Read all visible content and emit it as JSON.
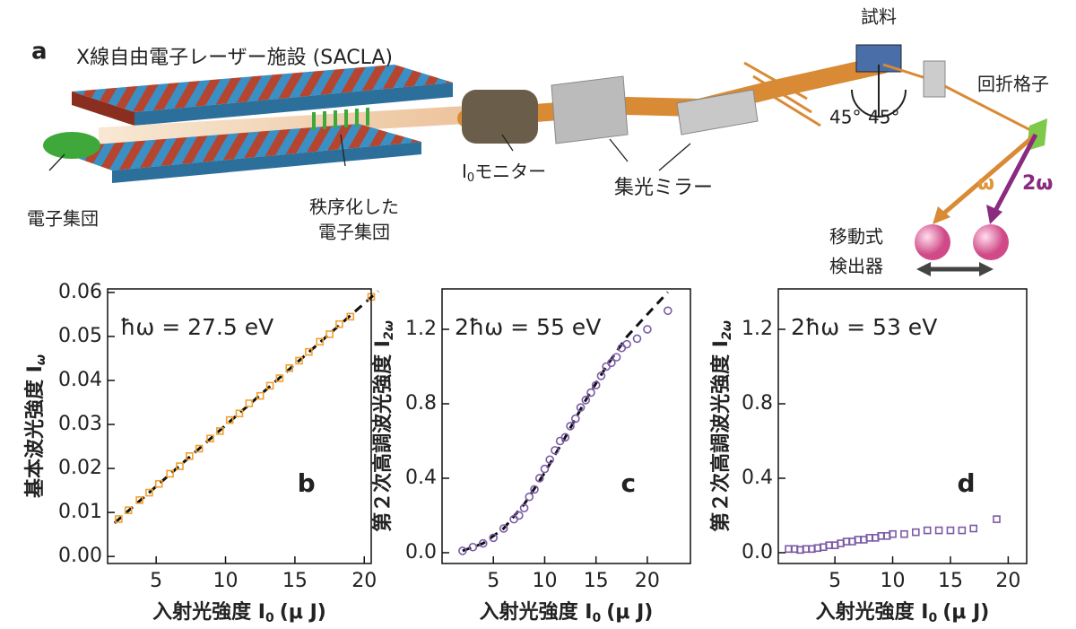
{
  "diagram": {
    "panel": "a",
    "title": "X線自由電子レーザー施設 (SACLA)",
    "bunch": "電子集団",
    "ordered": [
      "秩序化した",
      "電子集団"
    ],
    "monitor": {
      "symbol": "I",
      "sub": "0",
      "text": "モニター"
    },
    "mirror": "集光ミラー",
    "sample": "試料",
    "angle1": "45°",
    "angle2": "45°",
    "grating": "回折格子",
    "omega": "ω",
    "omega2": "2ω",
    "detector": [
      "移動式",
      "検出器"
    ]
  },
  "chart_data": [
    {
      "type": "scatter",
      "panel": "b",
      "annotation": "ħω = 27.5 eV",
      "marker": "square",
      "color": "#f0a030",
      "xlabel": "入射光強度 I",
      "xlabel_sub": "0",
      "xlabel_unit": "(μ J)",
      "ylabel": "基本波光強度 I",
      "ylabel_sub": "ω",
      "x": [
        2.3,
        3,
        3.8,
        4.5,
        5.2,
        6,
        6.7,
        7.4,
        8.1,
        8.9,
        9.6,
        10.3,
        11,
        11.7,
        12.5,
        13.2,
        13.9,
        14.6,
        15.3,
        16,
        16.8,
        17.5,
        18.2,
        19,
        20.5
      ],
      "values": [
        0.0085,
        0.0105,
        0.0128,
        0.0145,
        0.0165,
        0.0188,
        0.0205,
        0.0228,
        0.0245,
        0.0268,
        0.0285,
        0.031,
        0.0325,
        0.0348,
        0.0365,
        0.0388,
        0.0405,
        0.0428,
        0.0445,
        0.0465,
        0.0488,
        0.0505,
        0.0528,
        0.0545,
        0.059
      ],
      "fit": {
        "x": [
          2,
          21
        ],
        "y": [
          0.0076,
          0.0603
        ]
      },
      "xlim": [
        1.5,
        20.5
      ],
      "ylim": [
        -0.0016,
        0.0608
      ],
      "xticks": [
        5,
        10,
        15,
        20
      ],
      "yticks": [
        {
          "value": 0,
          "label": "0.00"
        },
        0.01,
        0.02,
        0.03,
        0.04,
        0.05,
        0.06
      ]
    },
    {
      "type": "scatter",
      "panel": "c",
      "annotation": "2ħω = 55 eV",
      "marker": "circle",
      "color": "#7b5aa6",
      "xlabel": "入射光強度 I",
      "xlabel_sub": "0",
      "xlabel_unit": "(μ J)",
      "ylabel": "第２次高調波光強度 I",
      "ylabel_sub": "2ω",
      "x": [
        2,
        3,
        4,
        5,
        6,
        7,
        7.5,
        8,
        8.5,
        9,
        9.5,
        10,
        10.5,
        11,
        11.5,
        12,
        12.5,
        13,
        13.5,
        14,
        14.5,
        15,
        15.5,
        16,
        16.5,
        17,
        17.5,
        18,
        19,
        20,
        22
      ],
      "values": [
        0.01,
        0.03,
        0.05,
        0.08,
        0.13,
        0.18,
        0.2,
        0.24,
        0.3,
        0.34,
        0.4,
        0.45,
        0.5,
        0.55,
        0.6,
        0.62,
        0.68,
        0.72,
        0.78,
        0.82,
        0.86,
        0.9,
        0.95,
        1.0,
        1.02,
        1.05,
        1.1,
        1.12,
        1.15,
        1.2,
        1.3
      ],
      "fit": {
        "x": [
          2,
          4,
          6,
          8,
          10,
          12,
          14,
          16,
          18,
          20,
          22
        ],
        "y": [
          0.01,
          0.05,
          0.13,
          0.26,
          0.43,
          0.62,
          0.82,
          1.0,
          1.16,
          1.28,
          1.4
        ]
      },
      "xlim": [
        0,
        24.2
      ],
      "ylim": [
        -0.058,
        1.417
      ],
      "xticks": [
        5,
        10,
        15,
        20
      ],
      "yticks": [
        {
          "value": 0,
          "label": "0.0"
        },
        0.4,
        0.8,
        1.2
      ]
    },
    {
      "type": "scatter",
      "panel": "d",
      "annotation": "2ħω = 53 eV",
      "marker": "square",
      "color": "#7b5aa6",
      "xlabel": "入射光強度 I",
      "xlabel_sub": "0",
      "xlabel_unit": "(μ J)",
      "ylabel": "第２次高調波光強度 I",
      "ylabel_sub": "2ω",
      "x": [
        1,
        1.5,
        2,
        2.5,
        3,
        3.5,
        4,
        4.5,
        5,
        5.5,
        6,
        6.5,
        7,
        7.5,
        8,
        8.5,
        9,
        9.5,
        10,
        11,
        12,
        13,
        14,
        15,
        16,
        17,
        19
      ],
      "values": [
        0.02,
        0.02,
        0.015,
        0.02,
        0.02,
        0.025,
        0.03,
        0.04,
        0.04,
        0.05,
        0.06,
        0.06,
        0.07,
        0.07,
        0.08,
        0.08,
        0.09,
        0.09,
        0.1,
        0.1,
        0.11,
        0.12,
        0.12,
        0.12,
        0.12,
        0.13,
        0.18
      ],
      "xlim": [
        0.1,
        21.6
      ],
      "ylim": [
        -0.058,
        1.417
      ],
      "xticks": [
        5,
        10,
        15,
        20
      ],
      "yticks": [
        {
          "value": 0,
          "label": "0.0"
        },
        0.4,
        0.8,
        1.2
      ]
    }
  ]
}
